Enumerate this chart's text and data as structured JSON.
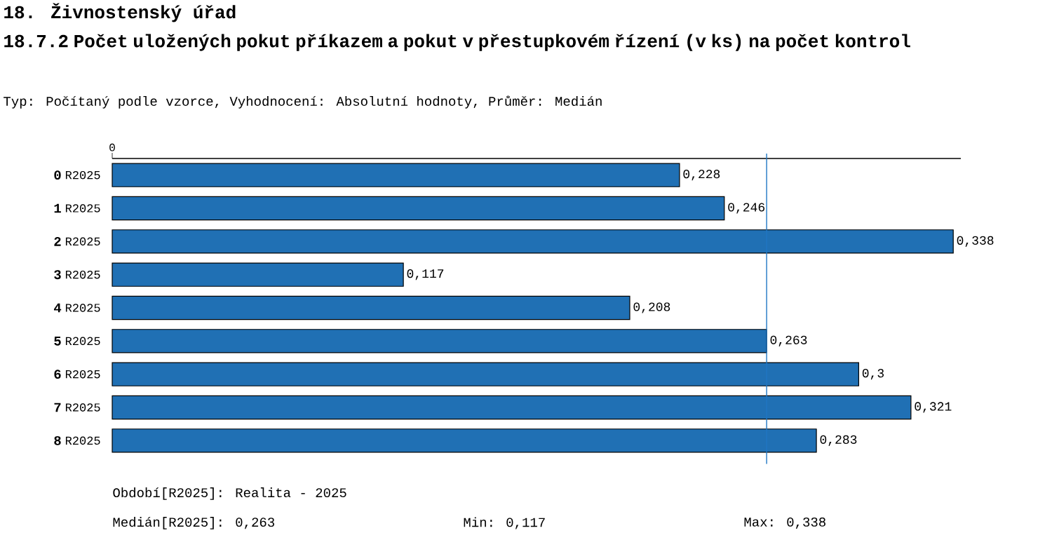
{
  "chart_data": {
    "type": "bar",
    "orientation": "horizontal",
    "title": "18. Živnostenský úřad",
    "subtitle": "18.7.2 Počet uložených pokut příkazem a pokut v přestupkovém řízení (v ks) na počet kontrol",
    "categories": [
      "R2025",
      "R2025",
      "R2025",
      "R2025",
      "R2025",
      "R2025",
      "R2025",
      "R2025",
      "R2025"
    ],
    "values": [
      0.228,
      0.246,
      0.338,
      0.117,
      0.208,
      0.263,
      0.3,
      0.321,
      0.283
    ],
    "value_labels": [
      "0,228",
      "0,246",
      "0,338",
      "0,117",
      "0,208",
      "0,263",
      "0,3",
      "0,321",
      "0,283"
    ],
    "color": "#2070b4",
    "ref_lines": [
      {
        "axis": "x",
        "value": 0.263,
        "color": "#1f77c4"
      }
    ],
    "annotations": [
      "Typ: Počítaný podle vzorce, Vyhodnocení: Absolutní hodnoty, Průměr: Medián",
      "0",
      "1",
      "2",
      "3",
      "4",
      "5",
      "6",
      "7",
      "8",
      "Období[R2025]: Realita - 2025",
      "Medián[R2025]: 0,263",
      "Min: 0,117",
      "Max: 0,338",
      "0"
    ]
  }
}
